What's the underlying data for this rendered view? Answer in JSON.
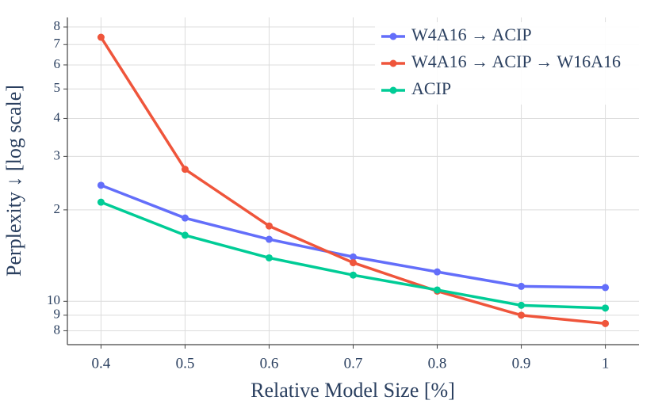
{
  "chart_data": {
    "type": "line",
    "xlabel": "Relative Model Size [%]",
    "ylabel": "Perplexity ↓ [log scale]",
    "x": [
      0.4,
      0.5,
      0.6,
      0.7,
      0.8,
      0.9,
      1
    ],
    "series": [
      {
        "name": "W4A16 → ACIP",
        "color": "#636efa",
        "values": [
          24.1,
          18.8,
          16.0,
          14.0,
          12.5,
          11.2,
          11.1
        ]
      },
      {
        "name": "W4A16 → ACIP → W16A16",
        "color": "#ef553b",
        "values": [
          74,
          27.2,
          17.7,
          13.4,
          10.8,
          9.0,
          8.45
        ]
      },
      {
        "name": "ACIP",
        "color": "#00cc96",
        "values": [
          21.2,
          16.5,
          13.9,
          12.2,
          10.9,
          9.7,
          9.5
        ]
      }
    ],
    "xlim": [
      0.36,
      1.04
    ],
    "xticks": [
      0.4,
      0.5,
      0.6,
      0.7,
      0.8,
      0.9,
      1
    ],
    "ylim": [
      7.2,
      86
    ],
    "log_y": true,
    "yticks": [
      8,
      9,
      10,
      {
        "value": 20,
        "label": "2"
      },
      {
        "value": 30,
        "label": "3"
      },
      {
        "value": 40,
        "label": "4"
      },
      {
        "value": 50,
        "label": "5"
      },
      {
        "value": 60,
        "label": "6"
      },
      {
        "value": 70,
        "label": "7"
      },
      {
        "value": 80,
        "label": "8"
      }
    ],
    "grid": true,
    "legend": "top-right"
  }
}
